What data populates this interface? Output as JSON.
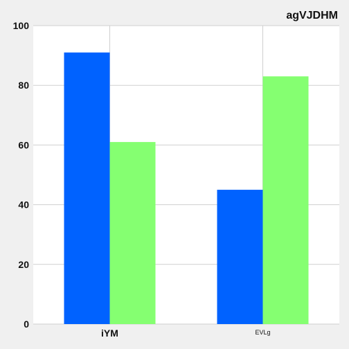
{
  "chart_data": {
    "type": "bar",
    "title": "agVJDHM",
    "categories": [
      "iYM",
      "EVLg"
    ],
    "series": [
      {
        "values": [
          91,
          45
        ],
        "color": "#0062ff"
      },
      {
        "values": [
          61,
          83
        ],
        "color": "#85ff71"
      }
    ],
    "ylim": [
      0,
      100
    ],
    "yticks": [
      0,
      20,
      40,
      60,
      80,
      100
    ],
    "grid": true
  }
}
